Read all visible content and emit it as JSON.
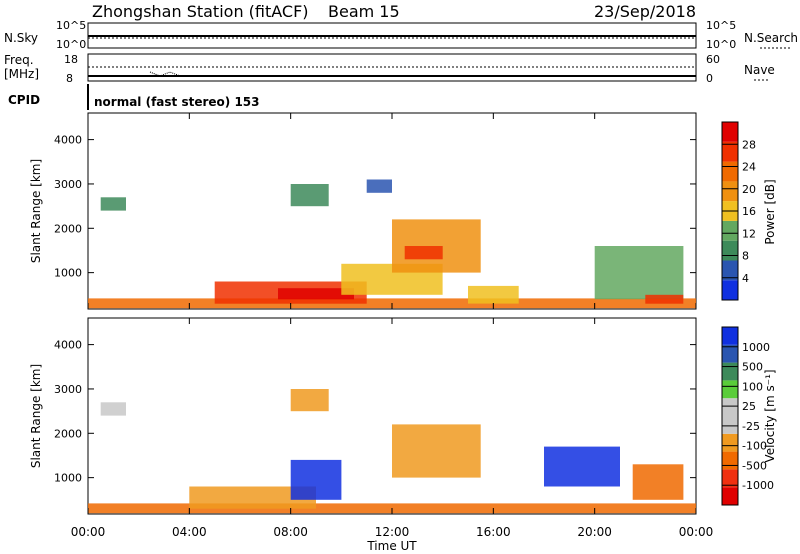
{
  "header": {
    "station": "Zhongshan Station (fitACF)",
    "beam": "Beam 15",
    "date": "23/Sep/2018"
  },
  "sky_panel": {
    "left_label": "N.Sky",
    "left_ticks": [
      "10^5",
      "10^0"
    ],
    "right_label": "N.Search",
    "right_ticks": [
      "10^5",
      "10^0"
    ]
  },
  "freq_panel": {
    "left_label_1": "Freq.",
    "left_label_2": "[MHz]",
    "left_ticks": [
      "18",
      "8"
    ],
    "right_label": "Nave",
    "right_ticks": [
      "60",
      "0"
    ]
  },
  "cpid": {
    "label": "CPID",
    "mode": "normal (fast stereo) 153"
  },
  "x_axis": {
    "label": "Time UT",
    "ticks": [
      "00:00",
      "04:00",
      "08:00",
      "12:00",
      "16:00",
      "20:00",
      "00:00"
    ]
  },
  "colors": {
    "power_scale": [
      "#1030e0",
      "#2a55b0",
      "#3d8a5a",
      "#63a860",
      "#f0c020",
      "#f09010",
      "#f06a00",
      "#f03000",
      "#e00000"
    ],
    "velocity_scale": [
      "#e00000",
      "#f03010",
      "#f06a00",
      "#f09a20",
      "#c8c8c8",
      "#c8c8c8",
      "#5acd3a",
      "#3d8a5a",
      "#2a55b0",
      "#1030e0"
    ]
  },
  "chart_data": [
    {
      "type": "heatmap",
      "title": "Power",
      "ylabel": "Slant Range [km]",
      "xlabel": "Time UT",
      "y_ticks": [
        1000,
        2000,
        3000,
        4000
      ],
      "ylim": [
        180,
        4600
      ],
      "xlim": [
        0,
        24
      ],
      "colorbar": {
        "label": "Power [dB]",
        "ticks": [
          "4",
          "8",
          "12",
          "16",
          "20",
          "24",
          "28"
        ],
        "range": [
          0,
          30
        ]
      },
      "regions": [
        {
          "t0": 0.0,
          "t1": 24.0,
          "r0": 200,
          "r1": 420,
          "level": 22
        },
        {
          "t0": 5.0,
          "t1": 11.0,
          "r0": 300,
          "r1": 800,
          "level": 26
        },
        {
          "t0": 7.5,
          "t1": 10.5,
          "r0": 400,
          "r1": 650,
          "level": 28
        },
        {
          "t0": 10.0,
          "t1": 14.0,
          "r0": 500,
          "r1": 1200,
          "level": 14
        },
        {
          "t0": 12.0,
          "t1": 15.5,
          "r0": 1000,
          "r1": 2200,
          "level": 18
        },
        {
          "t0": 12.5,
          "t1": 14.0,
          "r0": 1300,
          "r1": 1600,
          "level": 24
        },
        {
          "t0": 15.0,
          "t1": 17.0,
          "r0": 300,
          "r1": 700,
          "level": 16
        },
        {
          "t0": 20.0,
          "t1": 23.5,
          "r0": 400,
          "r1": 1600,
          "level": 12
        },
        {
          "t0": 22.0,
          "t1": 23.5,
          "r0": 300,
          "r1": 500,
          "level": 26
        },
        {
          "t0": 0.5,
          "t1": 1.5,
          "r0": 2400,
          "r1": 2700,
          "level": 8
        },
        {
          "t0": 8.0,
          "t1": 9.5,
          "r0": 2500,
          "r1": 3000,
          "level": 8
        },
        {
          "t0": 11.0,
          "t1": 12.0,
          "r0": 2800,
          "r1": 3100,
          "level": 6
        }
      ]
    },
    {
      "type": "heatmap",
      "title": "Velocity",
      "ylabel": "Slant Range [km]",
      "xlabel": "Time UT",
      "y_ticks": [
        1000,
        2000,
        3000,
        4000
      ],
      "ylim": [
        180,
        4600
      ],
      "xlim": [
        0,
        24
      ],
      "colorbar": {
        "label": "Velocity [m s⁻¹]",
        "ticks": [
          "-1000",
          "-500",
          "-100",
          "-25",
          "25",
          "100",
          "500",
          "1000"
        ]
      },
      "regions": [
        {
          "t0": 0.0,
          "t1": 24.0,
          "r0": 200,
          "r1": 420,
          "level": 2
        },
        {
          "t0": 4.0,
          "t1": 9.0,
          "r0": 300,
          "r1": 800,
          "level": 3
        },
        {
          "t0": 8.0,
          "t1": 10.0,
          "r0": 500,
          "r1": 1400,
          "level": 9
        },
        {
          "t0": 12.0,
          "t1": 15.5,
          "r0": 1000,
          "r1": 2200,
          "level": 3
        },
        {
          "t0": 18.0,
          "t1": 21.0,
          "r0": 800,
          "r1": 1700,
          "level": 9
        },
        {
          "t0": 21.5,
          "t1": 23.5,
          "r0": 500,
          "r1": 1300,
          "level": 2
        },
        {
          "t0": 0.5,
          "t1": 1.5,
          "r0": 2400,
          "r1": 2700,
          "level": 4
        },
        {
          "t0": 8.0,
          "t1": 9.5,
          "r0": 2500,
          "r1": 3000,
          "level": 3
        }
      ]
    }
  ]
}
